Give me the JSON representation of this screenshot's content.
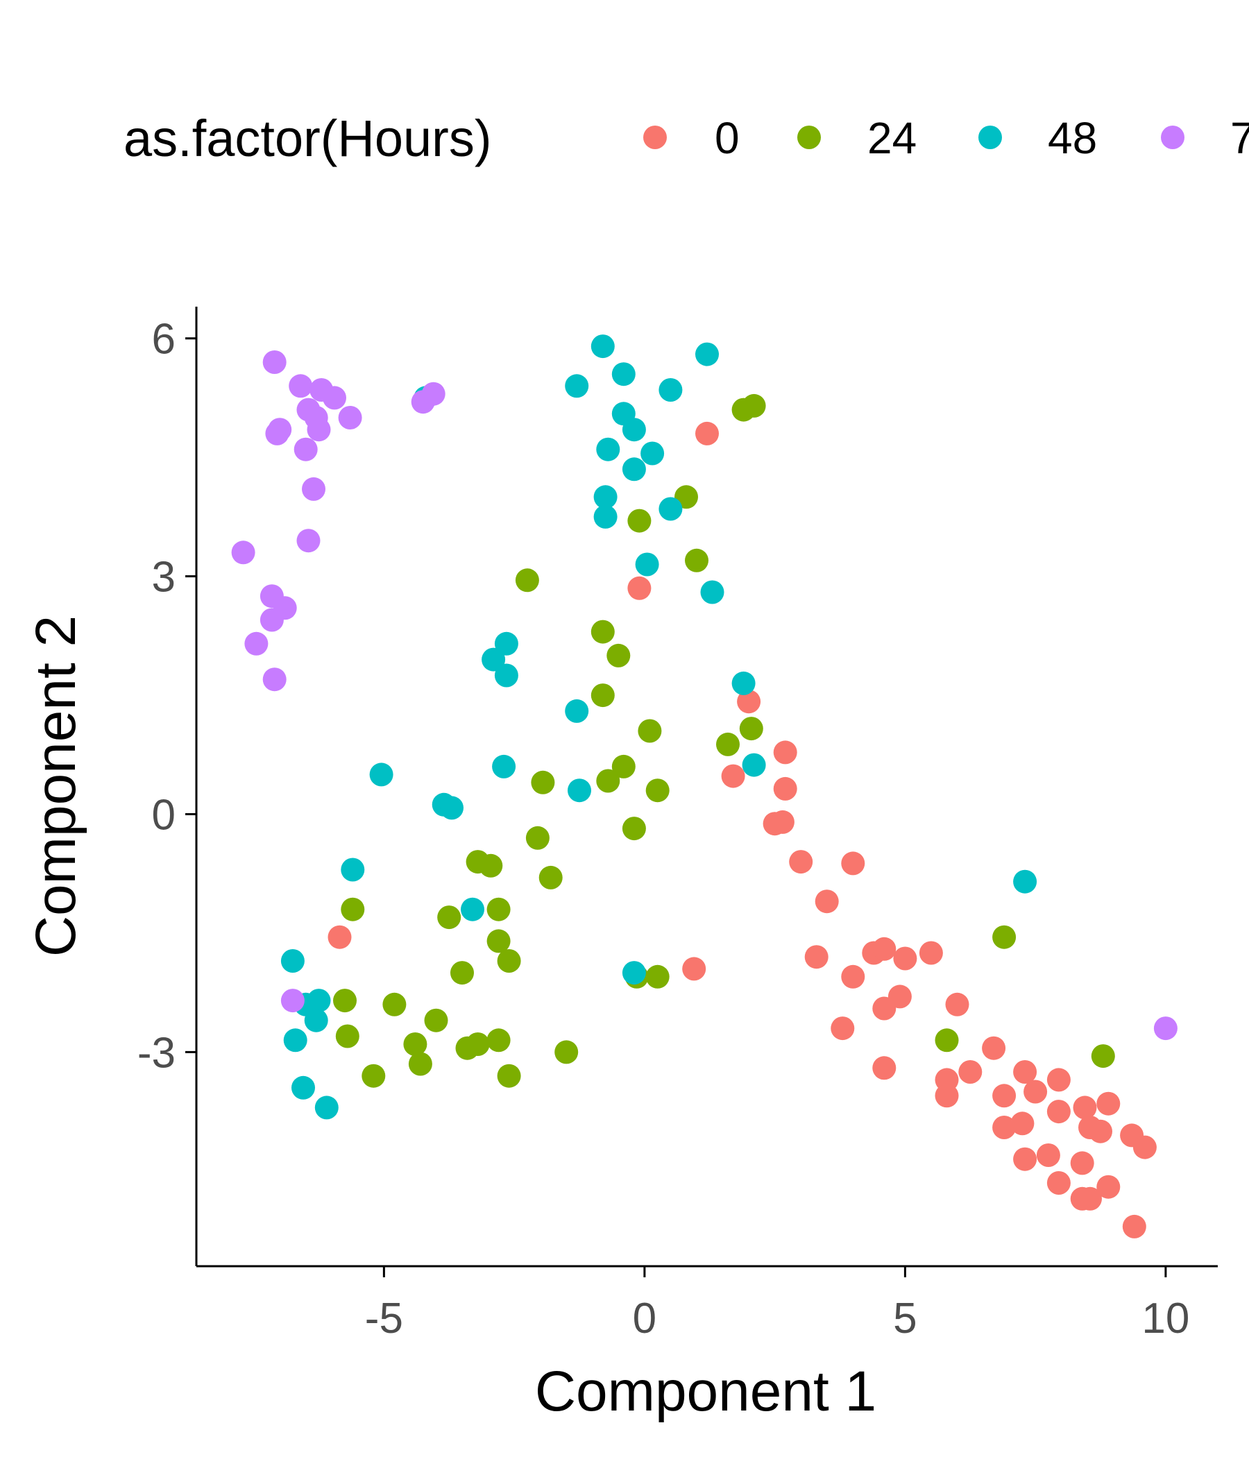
{
  "chart_data": {
    "type": "scatter",
    "title": "",
    "xlabel": "Component 1",
    "ylabel": "Component 2",
    "xlim": [
      -8.6,
      11
    ],
    "ylim": [
      -5.7,
      6.4
    ],
    "x_ticks": [
      -5,
      0,
      5,
      10
    ],
    "y_ticks": [
      -3,
      0,
      3,
      6
    ],
    "x_tick_labels": [
      "-5",
      "0",
      "5",
      "10"
    ],
    "y_tick_labels": [
      "-3",
      "0",
      "3",
      "6"
    ],
    "grid": false,
    "legend": {
      "title": "as.factor(Hours)",
      "position": "top",
      "labels": [
        "0",
        "24",
        "48",
        "7"
      ]
    },
    "series": [
      {
        "name": "0",
        "color": "#F8766D",
        "points": [
          [
            1.2,
            4.8
          ],
          [
            -0.1,
            2.85
          ],
          [
            2.0,
            1.42
          ],
          [
            2.7,
            0.78
          ],
          [
            1.7,
            0.48
          ],
          [
            2.7,
            0.32
          ],
          [
            2.5,
            -0.12
          ],
          [
            2.65,
            -0.1
          ],
          [
            3.0,
            -0.6
          ],
          [
            4.0,
            -0.62
          ],
          [
            3.5,
            -1.1
          ],
          [
            3.3,
            -1.8
          ],
          [
            4.4,
            -1.75
          ],
          [
            4.6,
            -1.7
          ],
          [
            5.0,
            -1.82
          ],
          [
            5.5,
            -1.75
          ],
          [
            4.0,
            -2.05
          ],
          [
            4.9,
            -2.3
          ],
          [
            4.6,
            -2.45
          ],
          [
            6.0,
            -2.4
          ],
          [
            3.8,
            -2.7
          ],
          [
            4.6,
            -3.2
          ],
          [
            5.8,
            -3.35
          ],
          [
            6.25,
            -3.25
          ],
          [
            5.8,
            -3.55
          ],
          [
            6.7,
            -2.95
          ],
          [
            7.3,
            -3.25
          ],
          [
            7.5,
            -3.5
          ],
          [
            7.95,
            -3.35
          ],
          [
            6.9,
            -3.55
          ],
          [
            7.95,
            -3.75
          ],
          [
            8.45,
            -3.7
          ],
          [
            8.9,
            -3.65
          ],
          [
            8.55,
            -3.95
          ],
          [
            8.75,
            -4.0
          ],
          [
            9.35,
            -4.05
          ],
          [
            9.6,
            -4.2
          ],
          [
            6.9,
            -3.95
          ],
          [
            7.25,
            -3.9
          ],
          [
            7.3,
            -4.35
          ],
          [
            7.75,
            -4.3
          ],
          [
            8.4,
            -4.4
          ],
          [
            7.95,
            -4.65
          ],
          [
            8.4,
            -4.85
          ],
          [
            8.55,
            -4.85
          ],
          [
            8.9,
            -4.7
          ],
          [
            9.4,
            -5.2
          ],
          [
            -5.85,
            -1.55
          ],
          [
            0.95,
            -1.95
          ]
        ]
      },
      {
        "name": "24",
        "color": "#7CAE00",
        "points": [
          [
            1.9,
            5.1
          ],
          [
            2.1,
            5.15
          ],
          [
            0.8,
            4.0
          ],
          [
            -0.1,
            3.7
          ],
          [
            1.0,
            3.2
          ],
          [
            -2.25,
            2.95
          ],
          [
            -0.8,
            2.3
          ],
          [
            -0.5,
            2.0
          ],
          [
            -0.8,
            1.5
          ],
          [
            0.1,
            1.05
          ],
          [
            1.6,
            0.88
          ],
          [
            2.05,
            1.08
          ],
          [
            -0.4,
            0.6
          ],
          [
            -0.7,
            0.42
          ],
          [
            0.25,
            0.3
          ],
          [
            -1.95,
            0.4
          ],
          [
            -0.2,
            -0.18
          ],
          [
            -2.05,
            -0.3
          ],
          [
            -1.8,
            -0.8
          ],
          [
            -3.2,
            -0.6
          ],
          [
            -2.95,
            -0.65
          ],
          [
            -3.75,
            -1.3
          ],
          [
            -2.8,
            -1.2
          ],
          [
            -5.6,
            -1.2
          ],
          [
            -2.8,
            -1.6
          ],
          [
            -2.6,
            -1.85
          ],
          [
            -3.5,
            -2.0
          ],
          [
            -5.75,
            -2.35
          ],
          [
            -4.8,
            -2.4
          ],
          [
            -4.0,
            -2.6
          ],
          [
            -5.7,
            -2.8
          ],
          [
            -4.4,
            -2.9
          ],
          [
            -3.4,
            -2.95
          ],
          [
            -3.2,
            -2.9
          ],
          [
            -2.8,
            -2.85
          ],
          [
            -4.3,
            -3.15
          ],
          [
            -1.5,
            -3.0
          ],
          [
            -5.2,
            -3.3
          ],
          [
            -2.6,
            -3.3
          ],
          [
            -0.15,
            -2.05
          ],
          [
            0.25,
            -2.05
          ],
          [
            6.9,
            -1.55
          ],
          [
            5.8,
            -2.85
          ],
          [
            8.8,
            -3.05
          ]
        ]
      },
      {
        "name": "48",
        "color": "#00BFC4",
        "points": [
          [
            -0.8,
            5.9
          ],
          [
            1.2,
            5.8
          ],
          [
            -1.3,
            5.4
          ],
          [
            -0.4,
            5.55
          ],
          [
            0.5,
            5.35
          ],
          [
            -0.4,
            5.05
          ],
          [
            -0.2,
            4.85
          ],
          [
            -0.7,
            4.6
          ],
          [
            0.15,
            4.55
          ],
          [
            -0.2,
            4.35
          ],
          [
            -0.75,
            4.0
          ],
          [
            -0.75,
            3.75
          ],
          [
            0.5,
            3.85
          ],
          [
            0.05,
            3.15
          ],
          [
            1.3,
            2.8
          ],
          [
            -2.65,
            2.15
          ],
          [
            -2.9,
            1.95
          ],
          [
            -2.65,
            1.75
          ],
          [
            -1.3,
            1.3
          ],
          [
            1.9,
            1.65
          ],
          [
            2.1,
            0.62
          ],
          [
            -2.7,
            0.6
          ],
          [
            -1.25,
            0.3
          ],
          [
            -5.05,
            0.5
          ],
          [
            -3.85,
            0.12
          ],
          [
            -3.7,
            0.08
          ],
          [
            -5.6,
            -0.7
          ],
          [
            -3.3,
            -1.2
          ],
          [
            -6.75,
            -1.85
          ],
          [
            -6.5,
            -2.4
          ],
          [
            -6.25,
            -2.35
          ],
          [
            -6.3,
            -2.6
          ],
          [
            -6.7,
            -2.85
          ],
          [
            -6.55,
            -3.45
          ],
          [
            -6.1,
            -3.7
          ],
          [
            -4.2,
            5.25
          ],
          [
            -0.2,
            -2.0
          ],
          [
            7.3,
            -0.85
          ]
        ]
      },
      {
        "name": "7",
        "color": "#C77CFF",
        "points": [
          [
            -7.1,
            5.7
          ],
          [
            -6.6,
            5.4
          ],
          [
            -6.2,
            5.35
          ],
          [
            -5.95,
            5.25
          ],
          [
            -6.45,
            5.1
          ],
          [
            -6.3,
            5.0
          ],
          [
            -6.25,
            4.85
          ],
          [
            -5.65,
            5.0
          ],
          [
            -7.0,
            4.85
          ],
          [
            -7.05,
            4.8
          ],
          [
            -6.5,
            4.6
          ],
          [
            -6.35,
            4.1
          ],
          [
            -6.45,
            3.45
          ],
          [
            -7.7,
            3.3
          ],
          [
            -7.15,
            2.75
          ],
          [
            -6.9,
            2.6
          ],
          [
            -7.15,
            2.45
          ],
          [
            -7.45,
            2.15
          ],
          [
            -7.1,
            1.7
          ],
          [
            -4.25,
            5.2
          ],
          [
            -4.05,
            5.3
          ],
          [
            -6.75,
            -2.35
          ],
          [
            10.0,
            -2.7
          ]
        ]
      }
    ]
  }
}
